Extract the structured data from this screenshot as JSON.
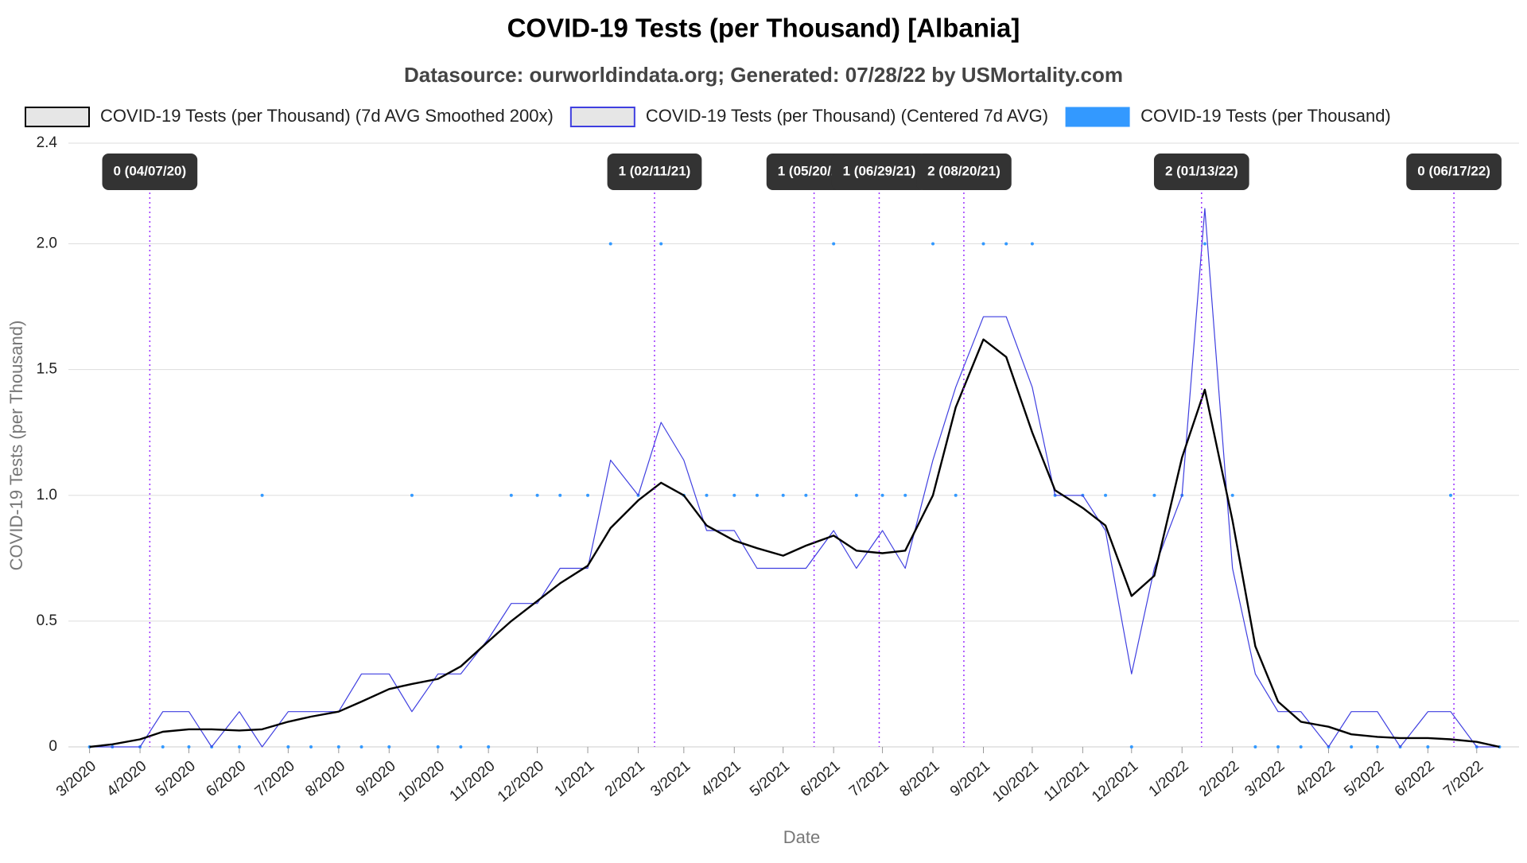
{
  "chart_data": {
    "type": "line",
    "title": "COVID-19 Tests (per Thousand) [Albania]",
    "subtitle": "Datasource: ourworldindata.org; Generated: 07/28/22 by USMortality.com",
    "x_label": "Date",
    "y_label": "COVID-19 Tests (per Thousand)",
    "x": [
      "2020-03-01",
      "2020-03-15",
      "2020-04-01",
      "2020-04-15",
      "2020-05-01",
      "2020-05-15",
      "2020-06-01",
      "2020-06-15",
      "2020-07-01",
      "2020-07-15",
      "2020-08-01",
      "2020-08-15",
      "2020-09-01",
      "2020-09-15",
      "2020-10-01",
      "2020-10-15",
      "2020-11-01",
      "2020-11-15",
      "2020-12-01",
      "2020-12-15",
      "2021-01-01",
      "2021-01-15",
      "2021-02-01",
      "2021-02-15",
      "2021-03-01",
      "2021-03-15",
      "2021-04-01",
      "2021-04-15",
      "2021-05-01",
      "2021-05-15",
      "2021-06-01",
      "2021-06-15",
      "2021-07-01",
      "2021-07-15",
      "2021-08-01",
      "2021-08-15",
      "2021-09-01",
      "2021-09-15",
      "2021-10-01",
      "2021-10-15",
      "2021-11-01",
      "2021-11-15",
      "2021-12-01",
      "2021-12-15",
      "2022-01-01",
      "2022-01-15",
      "2022-02-01",
      "2022-02-15",
      "2022-03-01",
      "2022-03-15",
      "2022-04-01",
      "2022-04-15",
      "2022-05-01",
      "2022-05-15",
      "2022-06-01",
      "2022-06-15",
      "2022-07-01",
      "2022-07-15"
    ],
    "series": [
      {
        "name": "COVID-19 Tests (per Thousand) (7d AVG Smoothed 200x)",
        "color": "#000000",
        "mark": "line",
        "width": 2.4,
        "values": [
          0,
          0.01,
          0.03,
          0.06,
          0.07,
          0.07,
          0.065,
          0.07,
          0.1,
          0.12,
          0.14,
          0.18,
          0.23,
          0.25,
          0.27,
          0.32,
          0.42,
          0.5,
          0.58,
          0.65,
          0.72,
          0.87,
          0.98,
          1.05,
          1.0,
          0.88,
          0.82,
          0.79,
          0.76,
          0.8,
          0.84,
          0.78,
          0.77,
          0.78,
          1.0,
          1.35,
          1.62,
          1.55,
          1.25,
          1.02,
          0.95,
          0.88,
          0.6,
          0.68,
          1.15,
          1.42,
          0.9,
          0.4,
          0.18,
          0.1,
          0.08,
          0.05,
          0.04,
          0.035,
          0.035,
          0.03,
          0.02,
          0
        ]
      },
      {
        "name": "COVID-19 Tests (per Thousand) (Centered 7d AVG)",
        "color": "#3f3fe0",
        "mark": "line",
        "width": 1.2,
        "values": [
          0,
          0,
          0,
          0.14,
          0.14,
          0,
          0.14,
          0,
          0.14,
          0.14,
          0.14,
          0.29,
          0.29,
          0.14,
          0.29,
          0.29,
          0.43,
          0.57,
          0.57,
          0.71,
          0.71,
          1.14,
          1.0,
          1.29,
          1.14,
          0.86,
          0.86,
          0.71,
          0.71,
          0.71,
          0.86,
          0.71,
          0.86,
          0.71,
          1.14,
          1.43,
          1.71,
          1.71,
          1.43,
          1.0,
          1.0,
          0.86,
          0.29,
          0.71,
          1.0,
          2.14,
          0.71,
          0.29,
          0.14,
          0.14,
          0,
          0.14,
          0.14,
          0,
          0.14,
          0.14,
          0,
          0
        ]
      },
      {
        "name": "COVID-19 Tests (per Thousand)",
        "color": "#3399ff",
        "mark": "dots",
        "width": 2,
        "values": [
          0,
          0,
          0,
          0,
          0,
          0,
          0,
          1,
          0,
          0,
          0,
          0,
          0,
          1,
          0,
          0,
          0,
          1,
          1,
          1,
          1,
          2,
          1,
          2,
          1,
          1,
          1,
          1,
          1,
          1,
          2,
          1,
          1,
          1,
          2,
          1,
          2,
          2,
          2,
          1,
          1,
          1,
          0,
          1,
          1,
          2,
          1,
          0,
          0,
          0,
          0,
          0,
          0,
          0,
          0,
          1,
          0,
          0
        ]
      }
    ],
    "annotations": [
      {
        "x": "2020-04-07",
        "label": "0 (04/07/20)"
      },
      {
        "x": "2021-02-11",
        "label": "1 (02/11/21)"
      },
      {
        "x": "2021-05-20",
        "label": "1 (05/20/21)"
      },
      {
        "x": "2021-06-29",
        "label": "1 (06/29/21)"
      },
      {
        "x": "2021-08-20",
        "label": "2 (08/20/21)"
      },
      {
        "x": "2022-01-13",
        "label": "2 (01/13/22)"
      },
      {
        "x": "2022-06-17",
        "label": "0 (06/17/22)"
      }
    ],
    "annotation_color": "#9b30ff",
    "xlim": [
      "2020-02-17",
      "2022-07-27"
    ],
    "xticks": [
      {
        "value": "2020-03-01",
        "label": "3/2020"
      },
      {
        "value": "2020-04-01",
        "label": "4/2020"
      },
      {
        "value": "2020-05-01",
        "label": "5/2020"
      },
      {
        "value": "2020-06-01",
        "label": "6/2020"
      },
      {
        "value": "2020-07-01",
        "label": "7/2020"
      },
      {
        "value": "2020-08-01",
        "label": "8/2020"
      },
      {
        "value": "2020-09-01",
        "label": "9/2020"
      },
      {
        "value": "2020-10-01",
        "label": "10/2020"
      },
      {
        "value": "2020-11-01",
        "label": "11/2020"
      },
      {
        "value": "2020-12-01",
        "label": "12/2020"
      },
      {
        "value": "2021-01-01",
        "label": "1/2021"
      },
      {
        "value": "2021-02-01",
        "label": "2/2021"
      },
      {
        "value": "2021-03-01",
        "label": "3/2021"
      },
      {
        "value": "2021-04-01",
        "label": "4/2021"
      },
      {
        "value": "2021-05-01",
        "label": "5/2021"
      },
      {
        "value": "2021-06-01",
        "label": "6/2021"
      },
      {
        "value": "2021-07-01",
        "label": "7/2021"
      },
      {
        "value": "2021-08-01",
        "label": "8/2021"
      },
      {
        "value": "2021-09-01",
        "label": "9/2021"
      },
      {
        "value": "2021-10-01",
        "label": "10/2021"
      },
      {
        "value": "2021-11-01",
        "label": "11/2021"
      },
      {
        "value": "2021-12-01",
        "label": "12/2021"
      },
      {
        "value": "2022-01-01",
        "label": "1/2022"
      },
      {
        "value": "2022-02-01",
        "label": "2/2022"
      },
      {
        "value": "2022-03-01",
        "label": "3/2022"
      },
      {
        "value": "2022-04-01",
        "label": "4/2022"
      },
      {
        "value": "2022-05-01",
        "label": "5/2022"
      },
      {
        "value": "2022-06-01",
        "label": "6/2022"
      },
      {
        "value": "2022-07-01",
        "label": "7/2022"
      }
    ],
    "ylim": [
      0,
      2.4
    ],
    "yticks": [
      0,
      {
        "value": 0.5,
        "label": "0.5"
      },
      {
        "value": 1,
        "label": "1.0"
      },
      {
        "value": 1.5,
        "label": "1.5"
      },
      {
        "value": 2,
        "label": "2.0"
      },
      2.4
    ],
    "grid": true
  }
}
